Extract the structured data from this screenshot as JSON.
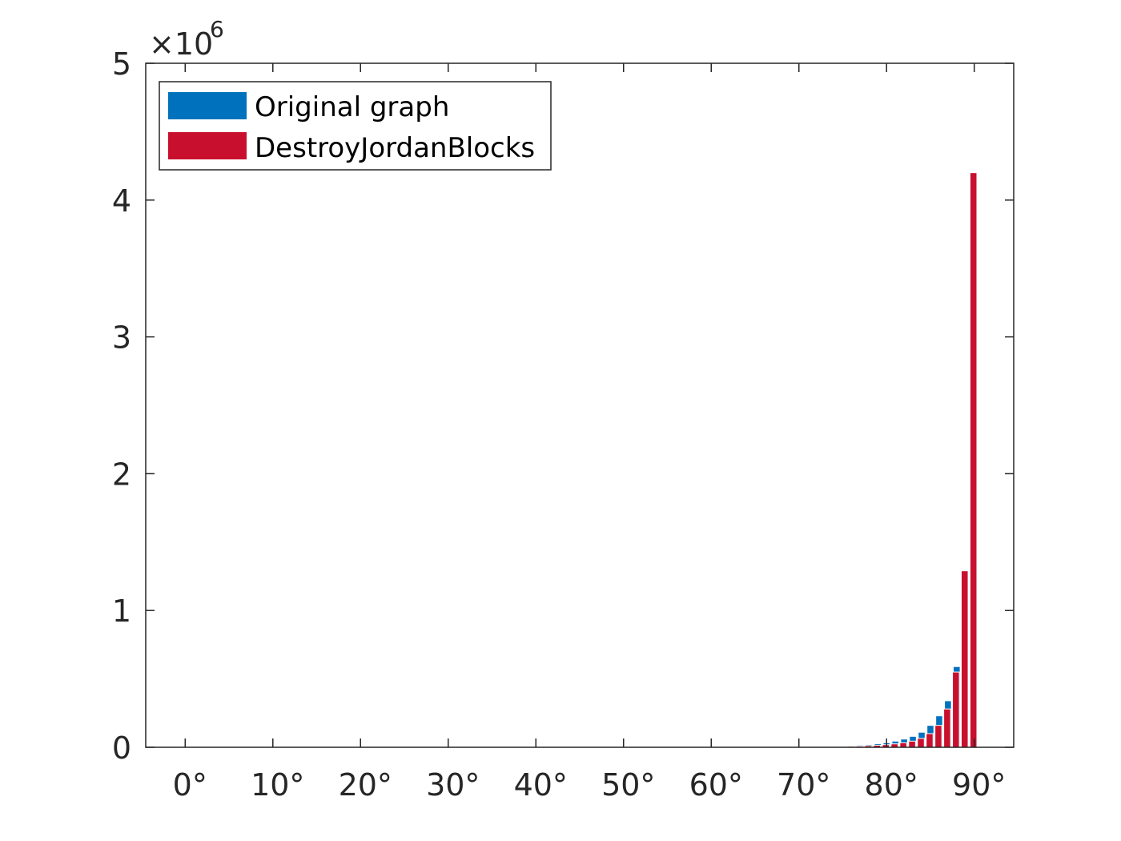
{
  "chart_data": {
    "type": "bar",
    "title": "",
    "xlabel": "",
    "ylabel": "",
    "x_range_deg": [
      -4.5,
      94.5
    ],
    "ylim": [
      0,
      5000000
    ],
    "y_ticks": [
      0,
      1000000,
      2000000,
      3000000,
      4000000,
      5000000
    ],
    "y_tick_labels": [
      "0",
      "1",
      "2",
      "3",
      "4",
      "5"
    ],
    "y_multiplier": {
      "base": "×10",
      "exponent": "6"
    },
    "x_ticks": [
      0,
      10,
      20,
      30,
      40,
      50,
      60,
      70,
      80,
      90
    ],
    "x_tick_labels": [
      "0°",
      "10°",
      "20°",
      "30°",
      "40°",
      "50°",
      "60°",
      "70°",
      "80°",
      "90°"
    ],
    "bin_centers": [
      72,
      73,
      74,
      75,
      76,
      77,
      78,
      79,
      80,
      81,
      82,
      83,
      84,
      85,
      86,
      87,
      88,
      89
    ],
    "bin_width_deg": 1,
    "series": [
      {
        "name": "Original graph",
        "color": "#0072bd",
        "values": [
          2000,
          4000,
          6000,
          9000,
          12000,
          16000,
          20000,
          26000,
          33000,
          45000,
          60000,
          80000,
          110000,
          160000,
          230000,
          340000,
          590000,
          0
        ]
      },
      {
        "name": "DestroyJordanBlocks",
        "color": "#c8102e",
        "values": [
          1000,
          2000,
          3000,
          5000,
          7000,
          9000,
          12000,
          15000,
          19000,
          25000,
          33000,
          45000,
          65000,
          100000,
          160000,
          280000,
          550000,
          1290000,
          4200000
        ]
      }
    ],
    "red_bin_centers": [
      72,
      73,
      74,
      75,
      76,
      77,
      78,
      79,
      80,
      81,
      82,
      83,
      84,
      85,
      86,
      87,
      88,
      89,
      90
    ],
    "legend": {
      "position": "top-left",
      "entries": [
        "Original graph",
        "DestroyJordanBlocks"
      ]
    },
    "grid": false
  }
}
